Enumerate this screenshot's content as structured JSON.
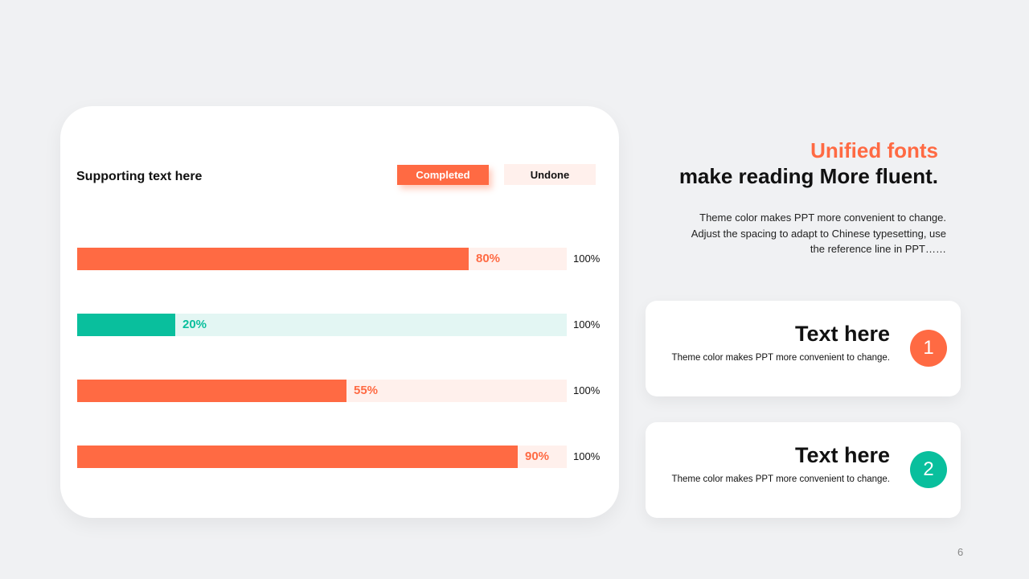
{
  "colors": {
    "accent": "#ff6a43",
    "accent_light": "#fff0ec",
    "teal": "#09bf9d",
    "teal_light": "#e3f6f3",
    "background": "#f0f1f3"
  },
  "left_panel": {
    "supporting_text": "Supporting text here",
    "legend": {
      "completed": "Completed",
      "undone": "Undone"
    }
  },
  "chart_data": {
    "type": "bar",
    "orientation": "horizontal",
    "series": [
      {
        "name": "Completed",
        "values": [
          80,
          20,
          55,
          90
        ]
      },
      {
        "name": "Undone",
        "values": [
          20,
          80,
          45,
          10
        ]
      }
    ],
    "value_labels": [
      "80%",
      "20%",
      "55%",
      "90%"
    ],
    "total_label": "100%",
    "bar_colors": [
      "#ff6a43",
      "#09bf9d",
      "#ff6a43",
      "#ff6a43"
    ],
    "track_colors": [
      "#fff0ec",
      "#e3f6f3",
      "#fff0ec",
      "#fff0ec"
    ],
    "xlim": [
      0,
      100
    ]
  },
  "right_panel": {
    "title_accent": "Unified fonts",
    "title_main": "make reading More fluent.",
    "description_lines": [
      "Theme color makes PPT more convenient  to change.",
      "Adjust the spacing to adapt to Chinese  typesetting, use",
      "the reference line in PPT……"
    ],
    "cards": [
      {
        "title": "Text here",
        "text": "Theme color makes PPT more convenient to change.",
        "number": "1",
        "color": "#ff6a43"
      },
      {
        "title": "Text here",
        "text": "Theme color makes PPT more convenient to change.",
        "number": "2",
        "color": "#09bf9d"
      }
    ]
  },
  "page_number": "6"
}
